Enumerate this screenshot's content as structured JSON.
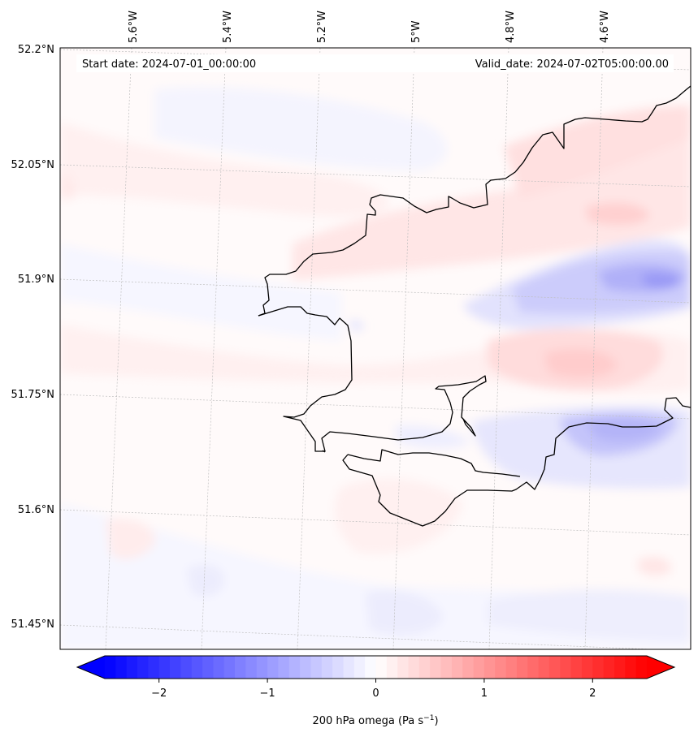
{
  "map": {
    "start_date": "Start date: 2024-07-01_00:00:00",
    "valid_date": "Valid_date: 2024-07-02T05:00:00.00",
    "lon_labels": [
      "5.6°W",
      "5.4°W",
      "5.2°W",
      "5°W",
      "4.8°W",
      "4.6°W"
    ],
    "lat_labels": [
      "52.2°N",
      "52.05°N",
      "51.9°N",
      "51.75°N",
      "51.6°N",
      "51.45°N"
    ]
  },
  "colorbar": {
    "ticks": [
      "−2",
      "−1",
      "0",
      "1",
      "2"
    ],
    "tick_values": [
      -2,
      -1,
      0,
      1,
      2
    ],
    "vmin": -2.5,
    "vmax": 2.5,
    "label_main": "200 hPa omega (Pa s",
    "label_exp": "−1",
    "label_end": ")",
    "colormap": "bwr",
    "color_low": "#0000ff",
    "color_mid": "#ffffff",
    "color_high": "#ff0000"
  }
}
